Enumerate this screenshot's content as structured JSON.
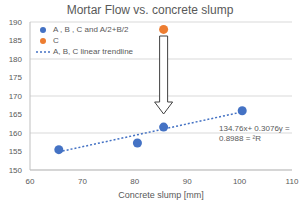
{
  "chart_data": {
    "type": "scatter",
    "title": "Mortar Flow vs. concrete slump",
    "x_label": "Concrete slump [mm]",
    "xlim": [
      60,
      110
    ],
    "xticks": [
      60,
      70,
      80,
      90,
      100,
      110
    ],
    "ylim": [
      150,
      190
    ],
    "yticks": [
      150,
      155,
      160,
      165,
      170,
      175,
      180,
      185,
      190
    ],
    "grid": true,
    "legend": "upper left",
    "series": [
      {
        "name": "A , B , C and A/2+B/2",
        "color": "#4472c4",
        "marker": "circle",
        "x": [
          65.5,
          80.5,
          85.5,
          100.5
        ],
        "values": [
          155.5,
          157.3,
          161.6,
          166
        ]
      },
      {
        "name": "C",
        "color": "#ed7d31",
        "marker": "circle",
        "x": [
          85.5
        ],
        "values": [
          188
        ]
      },
      {
        "name": "A, B, C linear trendline",
        "color": "#4472c4",
        "type": "line",
        "line_style": "dotted",
        "x": [
          65.5,
          100.5
        ],
        "values": [
          154.9,
          165.7
        ]
      }
    ],
    "annotations": [
      "134.76x+ 0.3076y =",
      "0.8988 = ²R"
    ]
  }
}
